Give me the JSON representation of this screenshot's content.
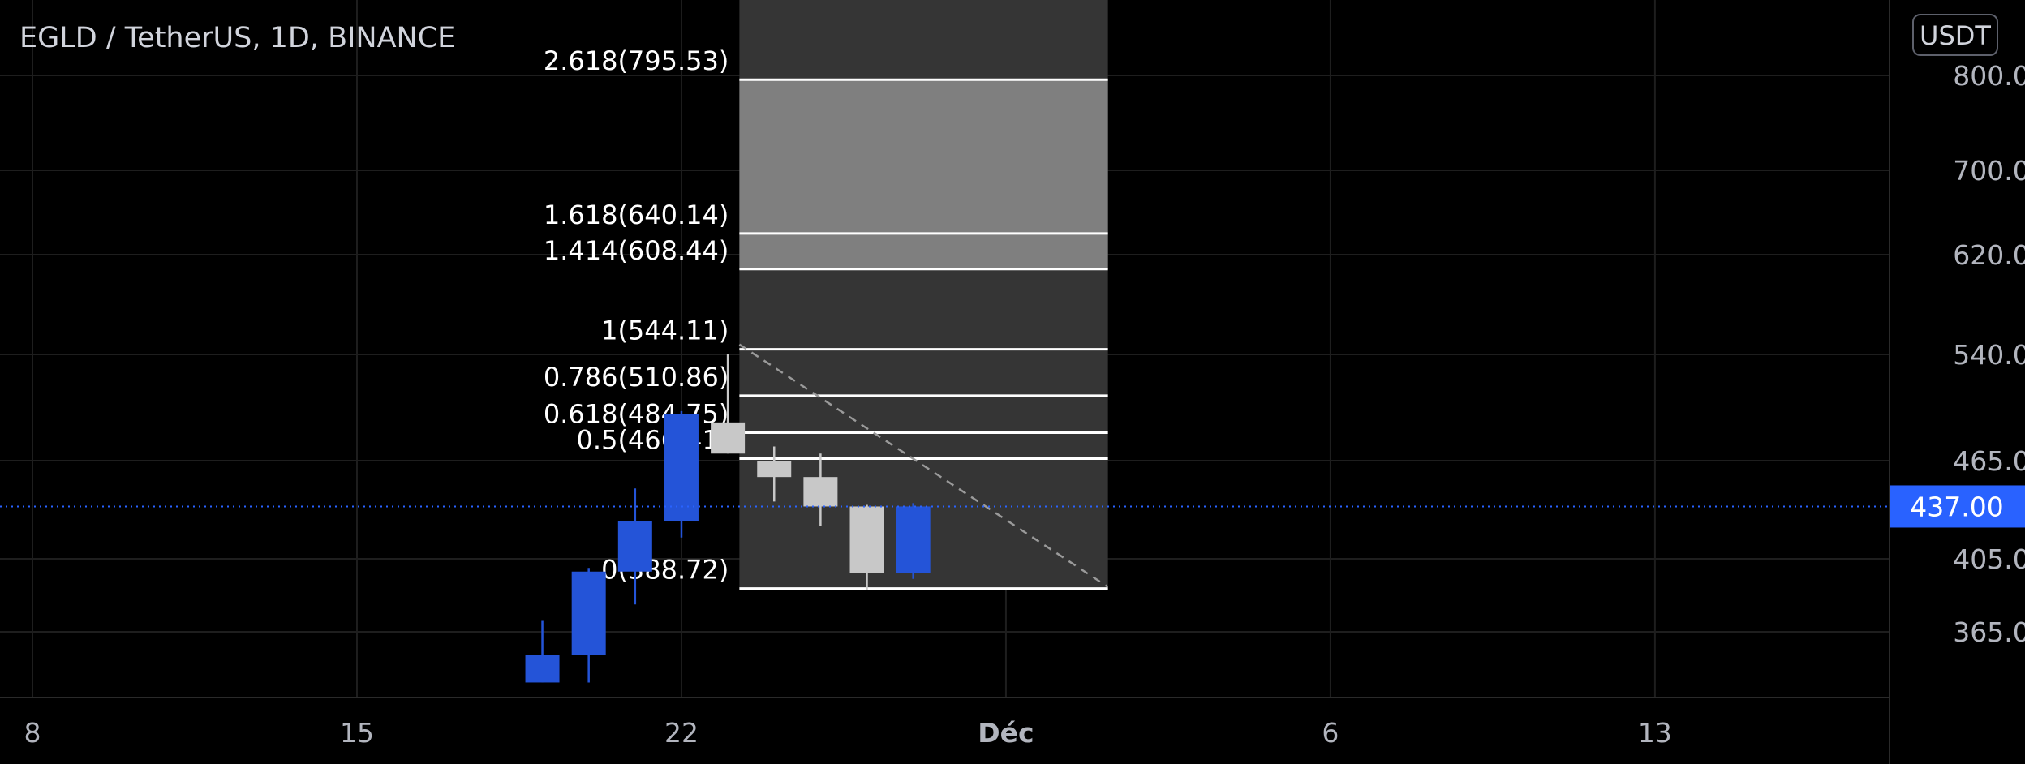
{
  "header": {
    "title": "EGLD / TetherUS, 1D, BINANCE",
    "currency_badge": "USDT"
  },
  "colors": {
    "background": "#000000",
    "grid": "#1e1e1e",
    "axis_text": "#b2b5be",
    "bull": "#2454d8",
    "bear": "#c8c8c8",
    "fib_zone": "#353535",
    "fib_target_zone": "#7f7f7f",
    "fib_line": "#ffffff",
    "price_tag": "#2962ff",
    "current_price_line": "#2962ff",
    "trend_line": "#9a9a9a"
  },
  "chart_data": {
    "type": "candlestick",
    "title": "EGLD / TetherUS, 1D, BINANCE",
    "y_axis": {
      "ticks": [
        "800.00",
        "700.00",
        "620.00",
        "540.00",
        "465.00",
        "405.00",
        "365.00"
      ],
      "unit": "USDT"
    },
    "x_axis": {
      "ticks": [
        "8",
        "15",
        "22",
        "Déc",
        "6",
        "13"
      ]
    },
    "candles": [
      {
        "day": "Nov 19",
        "open": 337,
        "high": 371,
        "low": 337,
        "close": 352,
        "color": "bull"
      },
      {
        "day": "Nov 20",
        "open": 352,
        "high": 400,
        "low": 337,
        "close": 398,
        "color": "bull"
      },
      {
        "day": "Nov 21",
        "open": 398,
        "high": 448,
        "low": 380,
        "close": 428,
        "color": "bull"
      },
      {
        "day": "Nov 22",
        "open": 428,
        "high": 500,
        "low": 418,
        "close": 498,
        "color": "bull"
      },
      {
        "day": "Nov 23",
        "open": 492,
        "high": 540,
        "low": 470,
        "close": 470,
        "color": "bear"
      },
      {
        "day": "Nov 24",
        "open": 465,
        "high": 475,
        "low": 440,
        "close": 455,
        "color": "bear"
      },
      {
        "day": "Nov 25",
        "open": 455,
        "high": 470,
        "low": 425,
        "close": 437,
        "color": "bear"
      },
      {
        "day": "Nov 26",
        "open": 437,
        "high": 438,
        "low": 388,
        "close": 397,
        "color": "bear"
      },
      {
        "day": "Nov 27",
        "open": 397,
        "high": 439,
        "low": 394,
        "close": 437,
        "color": "bull"
      }
    ],
    "fibonacci_extension": [
      {
        "ratio": "2.618",
        "price": 795.53,
        "label": "2.618(795.53)"
      },
      {
        "ratio": "1.618",
        "price": 640.14,
        "label": "1.618(640.14)"
      },
      {
        "ratio": "1.414",
        "price": 608.44,
        "label": "1.414(608.44)"
      },
      {
        "ratio": "1",
        "price": 544.11,
        "label": "1(544.11)"
      },
      {
        "ratio": "0.786",
        "price": 510.86,
        "label": "0.786(510.86)"
      },
      {
        "ratio": "0.618",
        "price": 484.75,
        "label": "0.618(484.75)"
      },
      {
        "ratio": "0.5",
        "price": 466.41,
        "label": "0.5(466.41)"
      },
      {
        "ratio": "0",
        "price": 388.72,
        "label": "0(388.72)"
      }
    ],
    "trend_line": {
      "from_price": 544.11,
      "to_price": 388.72,
      "style": "dashed"
    },
    "current_price": {
      "value": 437.0,
      "label": "437.00"
    }
  }
}
